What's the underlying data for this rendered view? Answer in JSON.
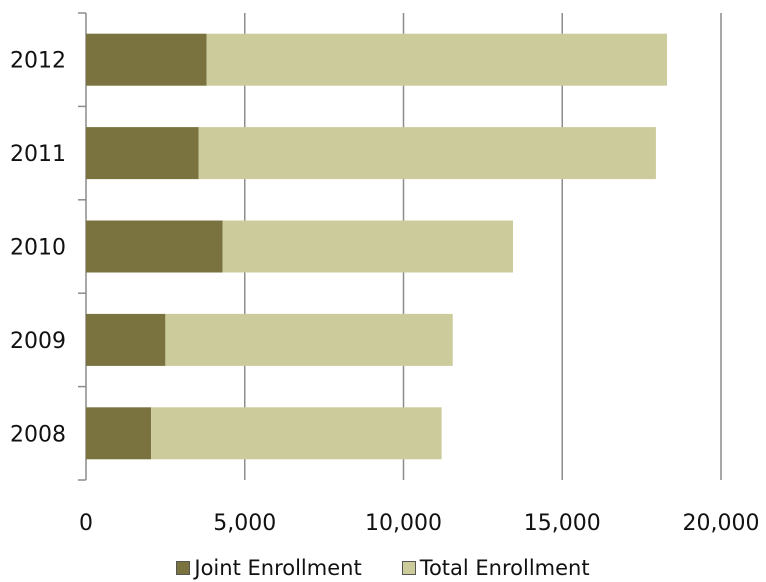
{
  "chart_data": {
    "type": "bar",
    "orientation": "horizontal",
    "stacked": true,
    "categories": [
      "2012",
      "2011",
      "2010",
      "2009",
      "2008"
    ],
    "series": [
      {
        "name": "Joint Enrollment",
        "values": [
          3800,
          3550,
          4300,
          2500,
          2050
        ],
        "color": "#7a7340"
      },
      {
        "name": "Total Enrollment",
        "values": [
          14500,
          14400,
          9150,
          9050,
          9150
        ],
        "color": "#cccb9c"
      }
    ],
    "xlim": [
      0,
      20000
    ],
    "xticks": [
      "0",
      "5,000",
      "10,000",
      "15,000",
      "20,000"
    ],
    "grid": "vertical",
    "legend_position": "bottom",
    "title": "",
    "xlabel": "",
    "ylabel": ""
  }
}
